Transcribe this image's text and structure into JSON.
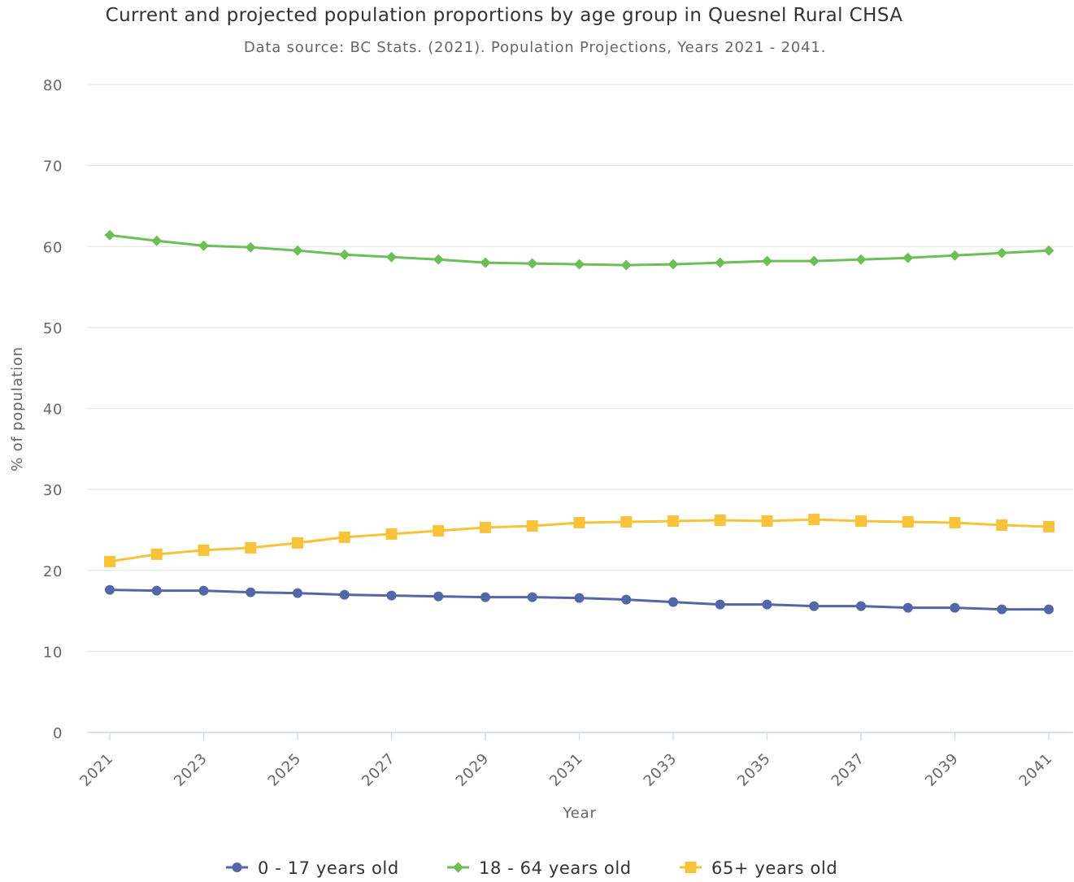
{
  "chart_data": {
    "type": "line",
    "title": "Current and projected population proportions by age group in Quesnel Rural CHSA",
    "subtitle": "Data source: BC Stats. (2021). Population Projections, Years 2021 - 2041.",
    "xlabel": "Year",
    "ylabel": "% of population",
    "x": [
      2021,
      2022,
      2023,
      2024,
      2025,
      2026,
      2027,
      2028,
      2029,
      2030,
      2031,
      2032,
      2033,
      2034,
      2035,
      2036,
      2037,
      2038,
      2039,
      2040,
      2041
    ],
    "x_tick_labels": [
      "2021",
      "2023",
      "2025",
      "2027",
      "2029",
      "2031",
      "2033",
      "2035",
      "2037",
      "2039",
      "2041"
    ],
    "ylim": [
      0,
      80
    ],
    "y_ticks": [
      0,
      10,
      20,
      30,
      40,
      50,
      60,
      70,
      80
    ],
    "grid": true,
    "legend_position": "bottom-center",
    "series": [
      {
        "name": "0 - 17 years old",
        "color": "#5566a8",
        "marker": "circle",
        "values": [
          17.6,
          17.5,
          17.5,
          17.3,
          17.2,
          17.0,
          16.9,
          16.8,
          16.7,
          16.7,
          16.6,
          16.4,
          16.1,
          15.8,
          15.8,
          15.6,
          15.6,
          15.4,
          15.4,
          15.2,
          15.2
        ]
      },
      {
        "name": "18 - 64 years old",
        "color": "#6cbe57",
        "marker": "diamond",
        "values": [
          61.4,
          60.7,
          60.1,
          59.9,
          59.5,
          59.0,
          58.7,
          58.4,
          58.0,
          57.9,
          57.8,
          57.7,
          57.8,
          58.0,
          58.2,
          58.2,
          58.4,
          58.6,
          58.9,
          59.2,
          59.5
        ]
      },
      {
        "name": "65+ years old",
        "color": "#f8c33b",
        "marker": "square",
        "values": [
          21.1,
          22.0,
          22.5,
          22.8,
          23.4,
          24.1,
          24.5,
          24.9,
          25.3,
          25.5,
          25.9,
          26.0,
          26.1,
          26.2,
          26.1,
          26.3,
          26.1,
          26.0,
          25.9,
          25.6,
          25.4
        ]
      }
    ]
  }
}
